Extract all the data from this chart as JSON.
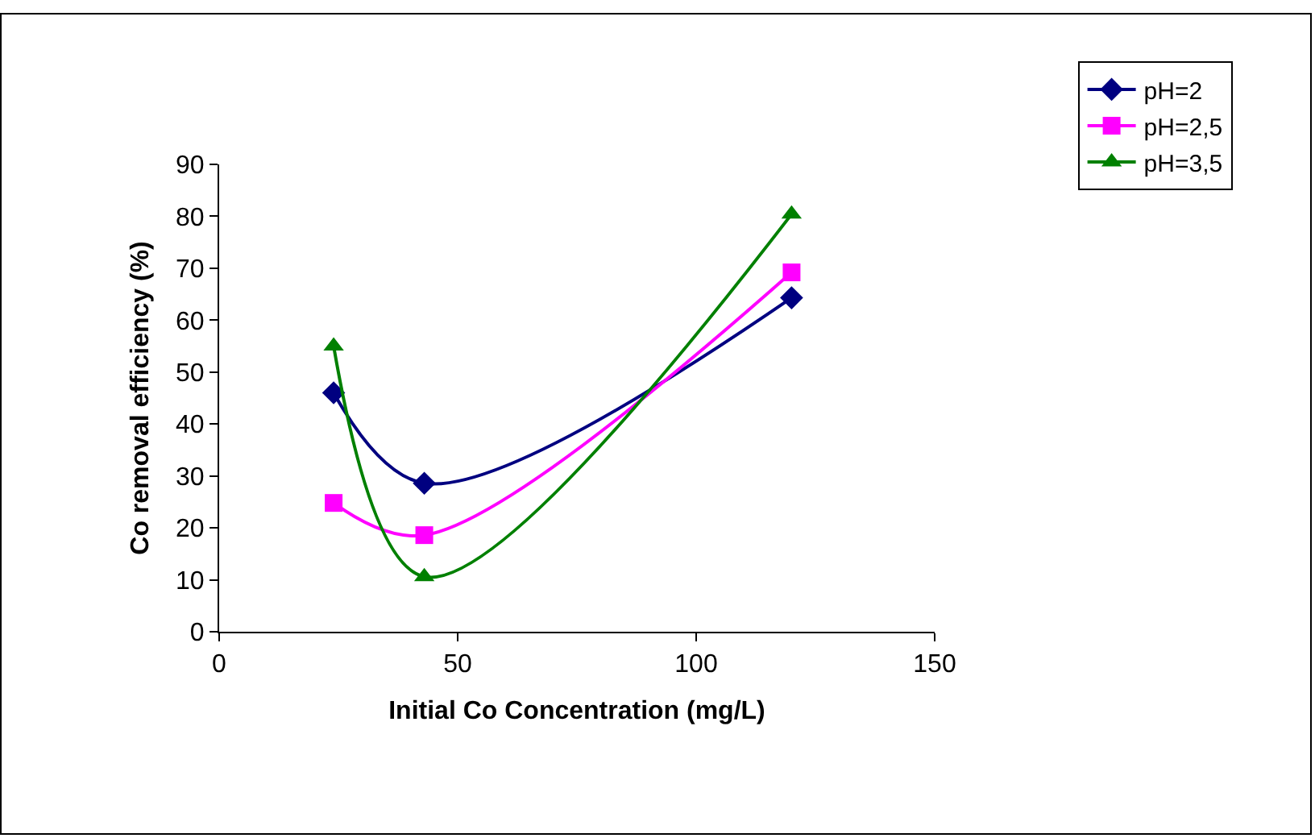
{
  "chart_data": {
    "type": "line",
    "xlabel": "Initial Co Concentration (mg/L)",
    "ylabel": "Co removal efficiency (%)",
    "x": [
      24,
      43,
      120
    ],
    "series": [
      {
        "name": "pH=2",
        "color": "#000080",
        "marker": "diamond",
        "values": [
          46,
          28.6,
          64.3
        ]
      },
      {
        "name": "pH=2,5",
        "color": "#ff00ff",
        "marker": "square",
        "values": [
          24.8,
          18.6,
          69.2
        ]
      },
      {
        "name": "pH=3,5",
        "color": "#008000",
        "marker": "triangle",
        "values": [
          55,
          10.6,
          80.4
        ]
      }
    ],
    "xlim": [
      0,
      150
    ],
    "xticks": [
      0,
      50,
      100,
      150
    ],
    "ylim": [
      0,
      90
    ],
    "yticks": [
      0,
      10,
      20,
      30,
      40,
      50,
      60,
      70,
      80,
      90
    ],
    "grid": false,
    "legend": "right",
    "line_style": "solid"
  }
}
